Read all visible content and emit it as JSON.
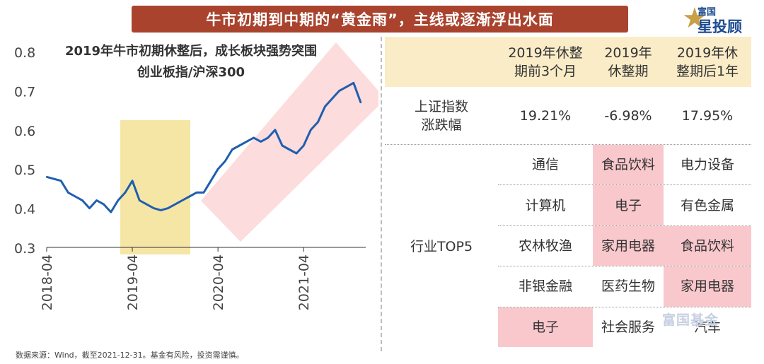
{
  "header": {
    "banner_text": "牛市初期到中期的“黄金雨”，主线或逐渐浮出水面",
    "logo_line1": "富国",
    "logo_line2": "星投顾",
    "logo_icon": "star-icon"
  },
  "chart_data": {
    "type": "line",
    "title_line1": "2019年牛市初期休整后，成长板块强势突围",
    "title_line2": "创业板指/沪深300",
    "xlabel": "",
    "ylabel": "",
    "ylim": [
      0.3,
      0.8
    ],
    "yticks": [
      "0.3",
      "0.4",
      "0.5",
      "0.6",
      "0.7",
      "0.8"
    ],
    "xticks": [
      "2018-04",
      "2019-04",
      "2020-04",
      "2021-04"
    ],
    "line_color": "#1f5fb0",
    "highlight_color": "#f6e6a6",
    "channel_color": "#fbd6d6",
    "series": [
      {
        "x": [
          "2018-04",
          "2018-05",
          "2018-06",
          "2018-07",
          "2018-08",
          "2018-09",
          "2018-10",
          "2018-11",
          "2018-12",
          "2019-01",
          "2019-02",
          "2019-03",
          "2019-04",
          "2019-05",
          "2019-06",
          "2019-07",
          "2019-08",
          "2019-09",
          "2019-10",
          "2019-11",
          "2019-12",
          "2020-01",
          "2020-02",
          "2020-03",
          "2020-04",
          "2020-05",
          "2020-06",
          "2020-07",
          "2020-08",
          "2020-09",
          "2020-10",
          "2020-11",
          "2020-12",
          "2021-01",
          "2021-02",
          "2021-03",
          "2021-04",
          "2021-05",
          "2021-06",
          "2021-07",
          "2021-08",
          "2021-09",
          "2021-10",
          "2021-11",
          "2021-12"
        ],
        "values": [
          0.48,
          0.475,
          0.47,
          0.44,
          0.43,
          0.42,
          0.4,
          0.42,
          0.41,
          0.39,
          0.42,
          0.44,
          0.47,
          0.42,
          0.41,
          0.4,
          0.395,
          0.4,
          0.41,
          0.42,
          0.43,
          0.44,
          0.44,
          0.47,
          0.5,
          0.52,
          0.55,
          0.56,
          0.57,
          0.58,
          0.57,
          0.58,
          0.6,
          0.56,
          0.55,
          0.54,
          0.56,
          0.6,
          0.62,
          0.66,
          0.68,
          0.7,
          0.71,
          0.72,
          0.67
        ]
      }
    ]
  },
  "source_note": "数据来源：Wind，截至2021-12-31。基金有风险，投资需谨慎。",
  "table": {
    "headers": [
      "2019年休整期前3个月",
      "2019年休整期",
      "2019年休整期后1年"
    ],
    "header_lines": [
      [
        "2019年休整",
        "期前3个月"
      ],
      [
        "2019年",
        "休整期"
      ],
      [
        "2019年休",
        "整期后1年"
      ]
    ],
    "row1_label_lines": [
      "上证指数",
      "涨跌幅"
    ],
    "returns": [
      "19.21%",
      "-6.98%",
      "17.95%"
    ],
    "industry_label": "行业TOP5",
    "industries": [
      [
        "通信",
        "食品饮料",
        "电力设备"
      ],
      [
        "计算机",
        "电子",
        "有色金属"
      ],
      [
        "农林牧渔",
        "家用电器",
        "食品饮料"
      ],
      [
        "非银金融",
        "医药生物",
        "家用电器"
      ],
      [
        "电子",
        "社会服务",
        "汽车"
      ]
    ],
    "highlight_color": "#f9c8cd",
    "header_bg": "#fbecc8"
  },
  "watermark": "富国基金"
}
